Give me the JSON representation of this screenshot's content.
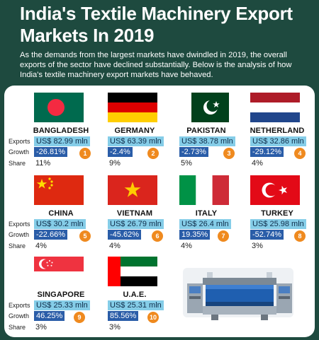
{
  "title": "India's Textile Machinery Export Markets In 2019",
  "subtitle": "As the demands from the largest markets have dwindled in 2019, the overall exports of the sector have declined substantially. Below is the analysis of how India's textile machinery export markets have behaved.",
  "labels": {
    "exports": "Exports",
    "growth": "Growth",
    "share": "Share"
  },
  "markets": [
    {
      "rank": "1",
      "country": "BANGLADESH",
      "exports": "US$ 82.99 mln",
      "growth": "-26.81%",
      "share": "11%",
      "flag_icon": "bangladesh-flag-icon"
    },
    {
      "rank": "2",
      "country": "GERMANY",
      "exports": "US$ 63.39 mln",
      "growth": "-2.4%",
      "share": "9%",
      "flag_icon": "germany-flag-icon"
    },
    {
      "rank": "3",
      "country": "PAKISTAN",
      "exports": "US$ 38.78 mln",
      "growth": "-2.73%",
      "share": "5%",
      "flag_icon": "pakistan-flag-icon"
    },
    {
      "rank": "4",
      "country": "NETHERLAND",
      "exports": "US$ 32.86 mln",
      "growth": "-29.12%",
      "share": "4%",
      "flag_icon": "netherlands-flag-icon"
    },
    {
      "rank": "5",
      "country": "CHINA",
      "exports": "US$ 30.2 mln",
      "growth": "-22.66%",
      "share": "4%",
      "flag_icon": "china-flag-icon"
    },
    {
      "rank": "6",
      "country": "VIETNAM",
      "exports": "US$ 26.79 mln",
      "growth": "-45.62%",
      "share": "4%",
      "flag_icon": "vietnam-flag-icon"
    },
    {
      "rank": "7",
      "country": "ITALY",
      "exports": "US$ 26.4 mln",
      "growth": "19.35%",
      "share": "4%",
      "flag_icon": "italy-flag-icon"
    },
    {
      "rank": "8",
      "country": "TURKEY",
      "exports": "US$ 25.98 mln",
      "growth": "-52.74%",
      "share": "3%",
      "flag_icon": "turkey-flag-icon"
    },
    {
      "rank": "9",
      "country": "SINGAPORE",
      "exports": "US$ 25.33 mln",
      "growth": "46.25%",
      "share": "3%",
      "flag_icon": "singapore-flag-icon"
    },
    {
      "rank": "10",
      "country": "U.A.E.",
      "exports": "US$ 25.31 mln",
      "growth": "85.56%",
      "share": "3%",
      "flag_icon": "uae-flag-icon"
    }
  ],
  "colors": {
    "background": "#1e4a3f",
    "exports_bar": "#85cde8",
    "growth_bar": "#2a5da8",
    "rank_badge": "#ef8a1f"
  }
}
